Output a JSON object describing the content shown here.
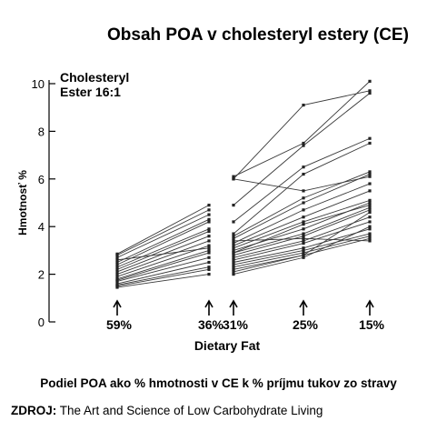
{
  "title": "Obsah POA v cholesteryl estery  (CE)",
  "caption": "Podiel POA ako % hmotnosti v CE k % príjmu tukov zo stravy",
  "source": {
    "label": "ZDROJ:",
    "text": " The Art and Science of Low Carbohydrate Living"
  },
  "chart_data": {
    "type": "line",
    "panel_label": [
      "Cholesteryl",
      "Ester 16:1"
    ],
    "ylabel": "Hmotnosť %",
    "xlabel": "Dietary Fat",
    "ylim": [
      0,
      10
    ],
    "yticks": [
      0,
      2,
      4,
      6,
      8,
      10
    ],
    "grid": false,
    "legend": "none",
    "x_labels": [
      "59%",
      "36%",
      "31%",
      "25%",
      "15%"
    ],
    "groups": [
      {
        "phase": "A",
        "x_from": "59%",
        "x_to": "36%",
        "series": [
          {
            "values": [
              2.85,
              4.9
            ]
          },
          {
            "values": [
              2.8,
              4.7
            ]
          },
          {
            "values": [
              2.7,
              4.5
            ]
          },
          {
            "values": [
              2.5,
              4.3
            ]
          },
          {
            "values": [
              2.4,
              4.2
            ]
          },
          {
            "values": [
              2.3,
              3.9
            ]
          },
          {
            "values": [
              2.2,
              3.8
            ]
          },
          {
            "values": [
              2.1,
              3.6
            ]
          },
          {
            "values": [
              2.0,
              3.4
            ]
          },
          {
            "values": [
              1.9,
              3.2
            ]
          },
          {
            "values": [
              1.8,
              3.0
            ]
          },
          {
            "values": [
              1.75,
              2.9
            ]
          },
          {
            "values": [
              1.7,
              2.7
            ]
          },
          {
            "values": [
              1.6,
              2.5
            ]
          },
          {
            "values": [
              1.55,
              2.3
            ]
          },
          {
            "values": [
              1.5,
              2.2
            ]
          },
          {
            "values": [
              1.45,
              2.0
            ]
          },
          {
            "values": [
              2.6,
              3.1
            ]
          }
        ]
      },
      {
        "phase": "B",
        "x_positions": [
          "31%",
          "25%",
          "15%"
        ],
        "series": [
          {
            "values": [
              6.0,
              9.1,
              9.7
            ]
          },
          {
            "values": [
              6.1,
              7.5,
              10.1
            ]
          },
          {
            "values": [
              4.9,
              7.4,
              9.6
            ]
          },
          {
            "values": [
              4.2,
              6.5,
              7.7
            ]
          },
          {
            "values": [
              3.7,
              6.2,
              7.5
            ]
          },
          {
            "values": [
              3.5,
              5.0,
              6.2
            ]
          },
          {
            "values": [
              3.3,
              4.7,
              5.8
            ]
          },
          {
            "values": [
              3.2,
              4.4,
              5.5
            ]
          },
          {
            "values": [
              3.1,
              4.2,
              5.1
            ]
          },
          {
            "values": [
              3.0,
              3.9,
              5.0
            ]
          },
          {
            "values": [
              2.9,
              3.7,
              4.8
            ]
          },
          {
            "values": [
              2.8,
              3.6,
              4.7
            ]
          },
          {
            "values": [
              2.7,
              3.4,
              4.4
            ]
          },
          {
            "values": [
              2.6,
              3.3,
              4.2
            ]
          },
          {
            "values": [
              2.5,
              3.1,
              3.9
            ]
          },
          {
            "values": [
              2.4,
              3.0,
              3.7
            ]
          },
          {
            "values": [
              2.3,
              2.9,
              3.6
            ]
          },
          {
            "values": [
              2.2,
              2.8,
              3.5
            ]
          },
          {
            "values": [
              2.1,
              2.8,
              4.6
            ]
          },
          {
            "values": [
              2.0,
              2.7,
              4.0
            ]
          },
          {
            "values": [
              6.0,
              5.5,
              6.1
            ]
          },
          {
            "values": [
              3.4,
              3.5,
              3.4
            ]
          },
          {
            "values": [
              2.9,
              4.1,
              4.9
            ]
          },
          {
            "values": [
              3.6,
              5.2,
              6.3
            ]
          }
        ]
      }
    ]
  }
}
